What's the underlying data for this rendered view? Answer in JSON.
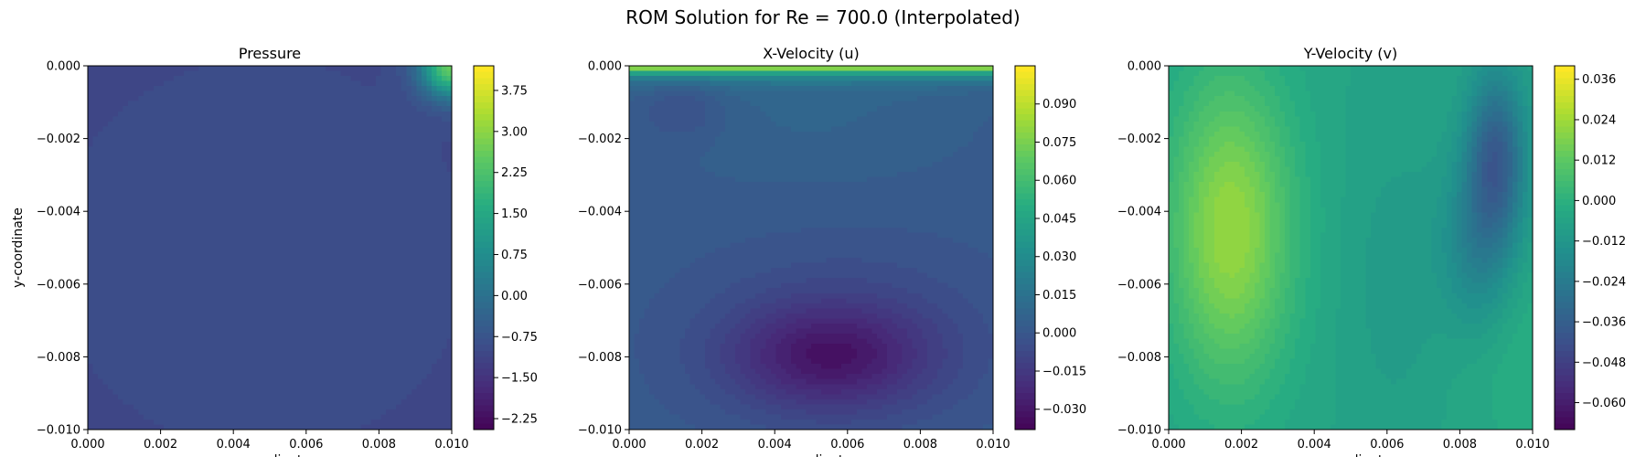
{
  "figure": {
    "title": "ROM Solution for Re = 700.0 (Interpolated)"
  },
  "chart_data": [
    {
      "type": "heatmap",
      "title": "Pressure",
      "xlabel": "x-coordinate",
      "ylabel": "y-coordinate",
      "xlim": [
        0.0,
        0.01
      ],
      "ylim": [
        -0.01,
        0.0
      ],
      "x_ticks": [
        "0.000",
        "0.002",
        "0.004",
        "0.006",
        "0.008",
        "0.010"
      ],
      "y_ticks": [
        "0.000",
        "−0.002",
        "−0.004",
        "−0.006",
        "−0.008",
        "−0.010"
      ],
      "colormap": "viridis",
      "colorbar_range": [
        -2.45,
        4.2
      ],
      "colorbar_ticks": [
        "3.75",
        "3.00",
        "2.25",
        "1.50",
        "0.75",
        "0.00",
        "−0.75",
        "−1.50",
        "−2.25"
      ],
      "colorbar_tick_values": [
        3.75,
        3.0,
        2.25,
        1.5,
        0.75,
        0.0,
        -0.75,
        -1.5,
        -2.25
      ],
      "field_base": -1.0,
      "features": [
        {
          "x": 0.0052,
          "y": -0.0048,
          "value": -1.3,
          "sx": 0.0017,
          "sy": 0.0014
        },
        {
          "x": 0.0048,
          "y": -0.0052,
          "value": -0.55,
          "sx": 0.0032,
          "sy": 0.003
        },
        {
          "x": 0.01,
          "y": 0.0,
          "value": 5.2,
          "sx": 0.0006,
          "sy": 0.0006
        }
      ]
    },
    {
      "type": "heatmap",
      "title": "X-Velocity (u)",
      "xlabel": "x-coordinate",
      "ylabel": "",
      "xlim": [
        0.0,
        0.01
      ],
      "ylim": [
        -0.01,
        0.0
      ],
      "x_ticks": [
        "0.000",
        "0.002",
        "0.004",
        "0.006",
        "0.008",
        "0.010"
      ],
      "y_ticks": [
        "0.000",
        "−0.002",
        "−0.004",
        "−0.006",
        "−0.008",
        "−0.010"
      ],
      "colormap": "viridis",
      "colorbar_range": [
        -0.038,
        0.105
      ],
      "colorbar_ticks": [
        "0.090",
        "0.075",
        "0.060",
        "0.045",
        "0.030",
        "0.015",
        "0.000",
        "−0.015",
        "−0.030"
      ],
      "colorbar_tick_values": [
        0.09,
        0.075,
        0.06,
        0.045,
        0.03,
        0.015,
        0.0,
        -0.015,
        -0.03
      ],
      "field_base": 0.003,
      "features": [
        {
          "x": 0.005,
          "y": -0.0012,
          "value": 0.012,
          "sx": 0.003,
          "sy": 0.0015
        },
        {
          "x": 0.0055,
          "y": -0.008,
          "value": -0.04,
          "sx": 0.0019,
          "sy": 0.001
        },
        {
          "x": 0.006,
          "y": -0.0074,
          "value": -0.012,
          "sx": 0.003,
          "sy": 0.0018
        },
        {
          "x": 0.0015,
          "y": -0.0012,
          "value": -0.01,
          "sx": 0.0008,
          "sy": 0.0006
        }
      ],
      "top_wall": {
        "value": 0.105,
        "decay": 0.00022
      }
    },
    {
      "type": "heatmap",
      "title": "Y-Velocity (v)",
      "xlabel": "x-coordinate",
      "ylabel": "",
      "xlim": [
        0.0,
        0.01
      ],
      "ylim": [
        -0.01,
        0.0
      ],
      "x_ticks": [
        "0.000",
        "0.002",
        "0.004",
        "0.006",
        "0.008",
        "0.010"
      ],
      "y_ticks": [
        "0.000",
        "−0.002",
        "−0.004",
        "−0.006",
        "−0.008",
        "−0.010"
      ],
      "colormap": "viridis",
      "colorbar_range": [
        -0.068,
        0.04
      ],
      "colorbar_ticks": [
        "0.036",
        "0.024",
        "0.012",
        "0.000",
        "−0.012",
        "−0.024",
        "−0.036",
        "−0.048",
        "−0.060"
      ],
      "colorbar_tick_values": [
        0.036,
        0.024,
        0.012,
        0.0,
        -0.012,
        -0.024,
        -0.036,
        -0.048,
        -0.06
      ],
      "field_base": -0.005,
      "features": [
        {
          "x": 0.0017,
          "y": -0.0045,
          "value": 0.042,
          "sx": 0.0012,
          "sy": 0.003
        },
        {
          "x": 0.009,
          "y": -0.0025,
          "value": -0.055,
          "sx": 0.00055,
          "sy": 0.0016
        },
        {
          "x": 0.0085,
          "y": -0.005,
          "value": -0.03,
          "sx": 0.0007,
          "sy": 0.0017
        },
        {
          "x": 0.0063,
          "y": -0.006,
          "value": -0.012,
          "sx": 0.001,
          "sy": 0.003
        },
        {
          "x": 0.01,
          "y": -0.008,
          "value": 0.004,
          "sx": 0.0015,
          "sy": 0.002
        }
      ]
    }
  ]
}
